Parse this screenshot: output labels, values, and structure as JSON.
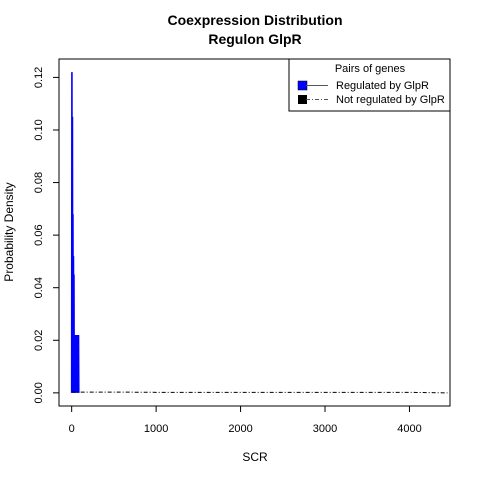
{
  "chart_data": {
    "type": "line",
    "title": "Coexpression Distribution",
    "subtitle": "Regulon GlpR",
    "xlabel": "SCR",
    "ylabel": "Probability Density",
    "xlim": [
      -150,
      4480
    ],
    "ylim": [
      -0.005,
      0.127
    ],
    "x_ticks": [
      0,
      1000,
      2000,
      3000,
      4000
    ],
    "y_ticks": [
      0.0,
      0.02,
      0.04,
      0.06,
      0.08,
      0.1,
      0.12
    ],
    "y_tick_labels": [
      "0.00",
      "0.02",
      "0.04",
      "0.06",
      "0.08",
      "0.10",
      "0.12"
    ],
    "legend": {
      "title": "Pairs of genes",
      "position": "top-right",
      "entries": [
        "Regulated by  GlpR",
        "Not regulated by  GlpR"
      ]
    },
    "series": [
      {
        "name": "Regulated by  GlpR",
        "color": "#0000ff",
        "style": "solid",
        "x": [
          0,
          3,
          6,
          9,
          12,
          15,
          18,
          21,
          24,
          27,
          30,
          33,
          36,
          39,
          42,
          45,
          48,
          51,
          54,
          57,
          60,
          63,
          66,
          69,
          72,
          75,
          78,
          81,
          84
        ],
        "y": [
          0.0,
          0.122,
          0.0,
          0.105,
          0.0,
          0.068,
          0.0,
          0.052,
          0.0,
          0.045,
          0.0,
          0.022,
          0.0,
          0.022,
          0.0,
          0.02,
          0.0,
          0.022,
          0.0,
          0.022,
          0.0,
          0.022,
          0.0,
          0.022,
          0.0,
          0.022,
          0.0,
          0.022,
          0.0
        ]
      },
      {
        "name": "Not regulated by  GlpR",
        "color": "#000000",
        "style": "dashed",
        "x": [
          0,
          500,
          1000,
          1500,
          2000,
          2500,
          3000,
          3500,
          4000,
          4200,
          4450
        ],
        "y": [
          0.0003,
          0.0003,
          0.0002,
          0.0002,
          0.0002,
          0.0002,
          0.0002,
          0.0002,
          0.0002,
          0.0001,
          0.0
        ]
      }
    ]
  }
}
